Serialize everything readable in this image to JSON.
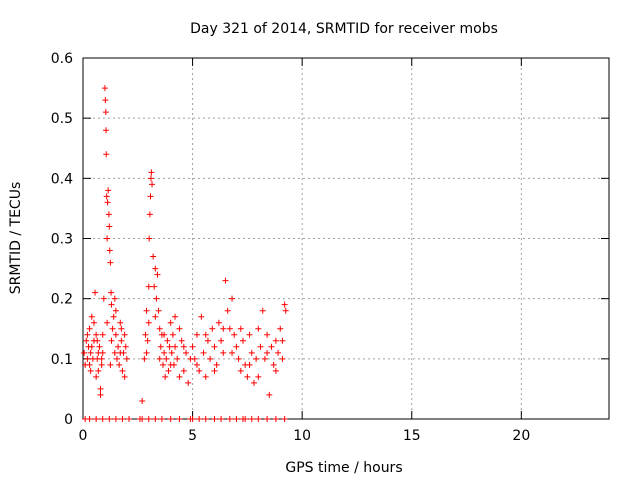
{
  "chart_data": {
    "type": "scatter",
    "title": "Day 321 of 2014, SRMTID for receiver mobs",
    "xlabel": "GPS time / hours",
    "ylabel": "SRMTID / TECUs",
    "xlim": [
      0,
      24
    ],
    "ylim": [
      0,
      0.6
    ],
    "xticks": [
      0,
      5,
      10,
      15,
      20
    ],
    "yticks": [
      0,
      0.1,
      0.2,
      0.3,
      0.4,
      0.5,
      0.6
    ],
    "grid": true,
    "series": [
      {
        "marker": "+",
        "color": "#ff0000",
        "points": [
          [
            0.05,
            0.11
          ],
          [
            0.1,
            0.09
          ],
          [
            0.15,
            0.13
          ],
          [
            0.2,
            0.1
          ],
          [
            0.25,
            0.12
          ],
          [
            0.3,
            0.15
          ],
          [
            0.35,
            0.11
          ],
          [
            0.4,
            0.17
          ],
          [
            0.45,
            0.1
          ],
          [
            0.5,
            0.13
          ],
          [
            0.55,
            0.21
          ],
          [
            0.6,
            0.14
          ],
          [
            0.65,
            0.1
          ],
          [
            0.7,
            0.08
          ],
          [
            0.75,
            0.12
          ],
          [
            0.8,
            0.05
          ],
          [
            0.85,
            0.09
          ],
          [
            0.9,
            0.11
          ],
          [
            0.95,
            0.2
          ],
          [
            1.0,
            0.55
          ],
          [
            1.02,
            0.53
          ],
          [
            1.04,
            0.51
          ],
          [
            1.05,
            0.48
          ],
          [
            1.06,
            0.44
          ],
          [
            1.08,
            0.37
          ],
          [
            1.1,
            0.3
          ],
          [
            1.12,
            0.36
          ],
          [
            1.15,
            0.38
          ],
          [
            1.18,
            0.34
          ],
          [
            1.2,
            0.32
          ],
          [
            1.22,
            0.28
          ],
          [
            1.25,
            0.26
          ],
          [
            1.28,
            0.21
          ],
          [
            1.3,
            0.19
          ],
          [
            1.35,
            0.15
          ],
          [
            1.4,
            0.17
          ],
          [
            1.45,
            0.2
          ],
          [
            1.5,
            0.14
          ],
          [
            1.55,
            0.1
          ],
          [
            1.6,
            0.12
          ],
          [
            1.65,
            0.09
          ],
          [
            1.7,
            0.16
          ],
          [
            1.75,
            0.13
          ],
          [
            1.8,
            0.08
          ],
          [
            1.85,
            0.11
          ],
          [
            1.9,
            0.14
          ],
          [
            1.95,
            0.12
          ],
          [
            2.0,
            0.1
          ],
          [
            0.2,
            0.14
          ],
          [
            0.3,
            0.09
          ],
          [
            0.4,
            0.12
          ],
          [
            0.5,
            0.16
          ],
          [
            0.6,
            0.07
          ],
          [
            0.7,
            0.11
          ],
          [
            0.8,
            0.04
          ],
          [
            0.9,
            0.14
          ],
          [
            1.1,
            0.16
          ],
          [
            1.3,
            0.13
          ],
          [
            1.5,
            0.18
          ],
          [
            1.7,
            0.11
          ],
          [
            1.9,
            0.07
          ],
          [
            0.35,
            0.08
          ],
          [
            0.65,
            0.13
          ],
          [
            0.85,
            0.1
          ],
          [
            1.25,
            0.09
          ],
          [
            1.45,
            0.11
          ],
          [
            1.75,
            0.15
          ],
          [
            2.7,
            0.03
          ],
          [
            2.8,
            0.1
          ],
          [
            2.85,
            0.14
          ],
          [
            2.9,
            0.18
          ],
          [
            2.95,
            0.13
          ],
          [
            3.0,
            0.22
          ],
          [
            3.02,
            0.3
          ],
          [
            3.05,
            0.34
          ],
          [
            3.08,
            0.37
          ],
          [
            3.1,
            0.4
          ],
          [
            3.12,
            0.41
          ],
          [
            3.15,
            0.39
          ],
          [
            3.2,
            0.27
          ],
          [
            3.25,
            0.22
          ],
          [
            3.3,
            0.25
          ],
          [
            3.35,
            0.2
          ],
          [
            3.4,
            0.24
          ],
          [
            3.45,
            0.18
          ],
          [
            3.5,
            0.15
          ],
          [
            3.55,
            0.12
          ],
          [
            3.6,
            0.14
          ],
          [
            3.65,
            0.09
          ],
          [
            3.7,
            0.11
          ],
          [
            3.75,
            0.07
          ],
          [
            3.8,
            0.1
          ],
          [
            3.85,
            0.13
          ],
          [
            3.9,
            0.08
          ],
          [
            3.95,
            0.12
          ],
          [
            4.0,
            0.16
          ],
          [
            4.05,
            0.11
          ],
          [
            4.1,
            0.14
          ],
          [
            4.15,
            0.09
          ],
          [
            4.2,
            0.12
          ],
          [
            4.3,
            0.1
          ],
          [
            4.4,
            0.15
          ],
          [
            4.5,
            0.13
          ],
          [
            4.6,
            0.08
          ],
          [
            4.7,
            0.11
          ],
          [
            4.8,
            0.06
          ],
          [
            4.9,
            0.1
          ],
          [
            2.9,
            0.11
          ],
          [
            3.0,
            0.16
          ],
          [
            3.3,
            0.17
          ],
          [
            3.5,
            0.1
          ],
          [
            3.7,
            0.14
          ],
          [
            4.0,
            0.09
          ],
          [
            4.2,
            0.17
          ],
          [
            4.4,
            0.07
          ],
          [
            4.6,
            0.12
          ],
          [
            5.0,
            0.12
          ],
          [
            5.1,
            0.1
          ],
          [
            5.2,
            0.14
          ],
          [
            5.3,
            0.08
          ],
          [
            5.4,
            0.17
          ],
          [
            5.5,
            0.11
          ],
          [
            5.6,
            0.07
          ],
          [
            5.7,
            0.13
          ],
          [
            5.8,
            0.1
          ],
          [
            5.9,
            0.15
          ],
          [
            6.0,
            0.12
          ],
          [
            6.1,
            0.09
          ],
          [
            6.2,
            0.16
          ],
          [
            6.3,
            0.13
          ],
          [
            6.4,
            0.11
          ],
          [
            6.5,
            0.23
          ],
          [
            6.6,
            0.18
          ],
          [
            6.7,
            0.15
          ],
          [
            6.8,
            0.2
          ],
          [
            6.9,
            0.14
          ],
          [
            7.0,
            0.12
          ],
          [
            7.1,
            0.1
          ],
          [
            7.2,
            0.08
          ],
          [
            7.3,
            0.13
          ],
          [
            7.4,
            0.09
          ],
          [
            7.5,
            0.07
          ],
          [
            7.6,
            0.14
          ],
          [
            7.7,
            0.11
          ],
          [
            7.8,
            0.06
          ],
          [
            7.9,
            0.1
          ],
          [
            8.0,
            0.15
          ],
          [
            8.1,
            0.12
          ],
          [
            8.2,
            0.18
          ],
          [
            8.3,
            0.1
          ],
          [
            8.4,
            0.14
          ],
          [
            8.5,
            0.04
          ],
          [
            8.6,
            0.12
          ],
          [
            8.7,
            0.09
          ],
          [
            8.8,
            0.13
          ],
          [
            8.9,
            0.11
          ],
          [
            9.0,
            0.15
          ],
          [
            9.1,
            0.1
          ],
          [
            9.2,
            0.19
          ],
          [
            9.25,
            0.18
          ],
          [
            5.2,
            0.09
          ],
          [
            5.6,
            0.14
          ],
          [
            6.0,
            0.08
          ],
          [
            6.4,
            0.15
          ],
          [
            6.8,
            0.11
          ],
          [
            7.2,
            0.15
          ],
          [
            7.6,
            0.09
          ],
          [
            8.0,
            0.07
          ],
          [
            8.4,
            0.11
          ],
          [
            8.8,
            0.08
          ],
          [
            9.1,
            0.13
          ],
          [
            0.1,
            0
          ],
          [
            0.3,
            0
          ],
          [
            0.6,
            0
          ],
          [
            0.9,
            0
          ],
          [
            1.2,
            0
          ],
          [
            1.5,
            0
          ],
          [
            1.8,
            0
          ],
          [
            2.1,
            0
          ],
          [
            2.6,
            0
          ],
          [
            2.7,
            0
          ],
          [
            3.0,
            0
          ],
          [
            3.3,
            0
          ],
          [
            3.6,
            0
          ],
          [
            4.0,
            0
          ],
          [
            4.4,
            0
          ],
          [
            4.9,
            0
          ],
          [
            5.0,
            0
          ],
          [
            5.3,
            0
          ],
          [
            5.6,
            0
          ],
          [
            6.0,
            0
          ],
          [
            6.3,
            0
          ],
          [
            6.7,
            0
          ],
          [
            7.0,
            0
          ],
          [
            7.3,
            0
          ],
          [
            7.4,
            0
          ],
          [
            7.7,
            0
          ],
          [
            8.0,
            0
          ],
          [
            8.4,
            0
          ],
          [
            8.8,
            0
          ],
          [
            9.2,
            0
          ]
        ]
      }
    ]
  }
}
